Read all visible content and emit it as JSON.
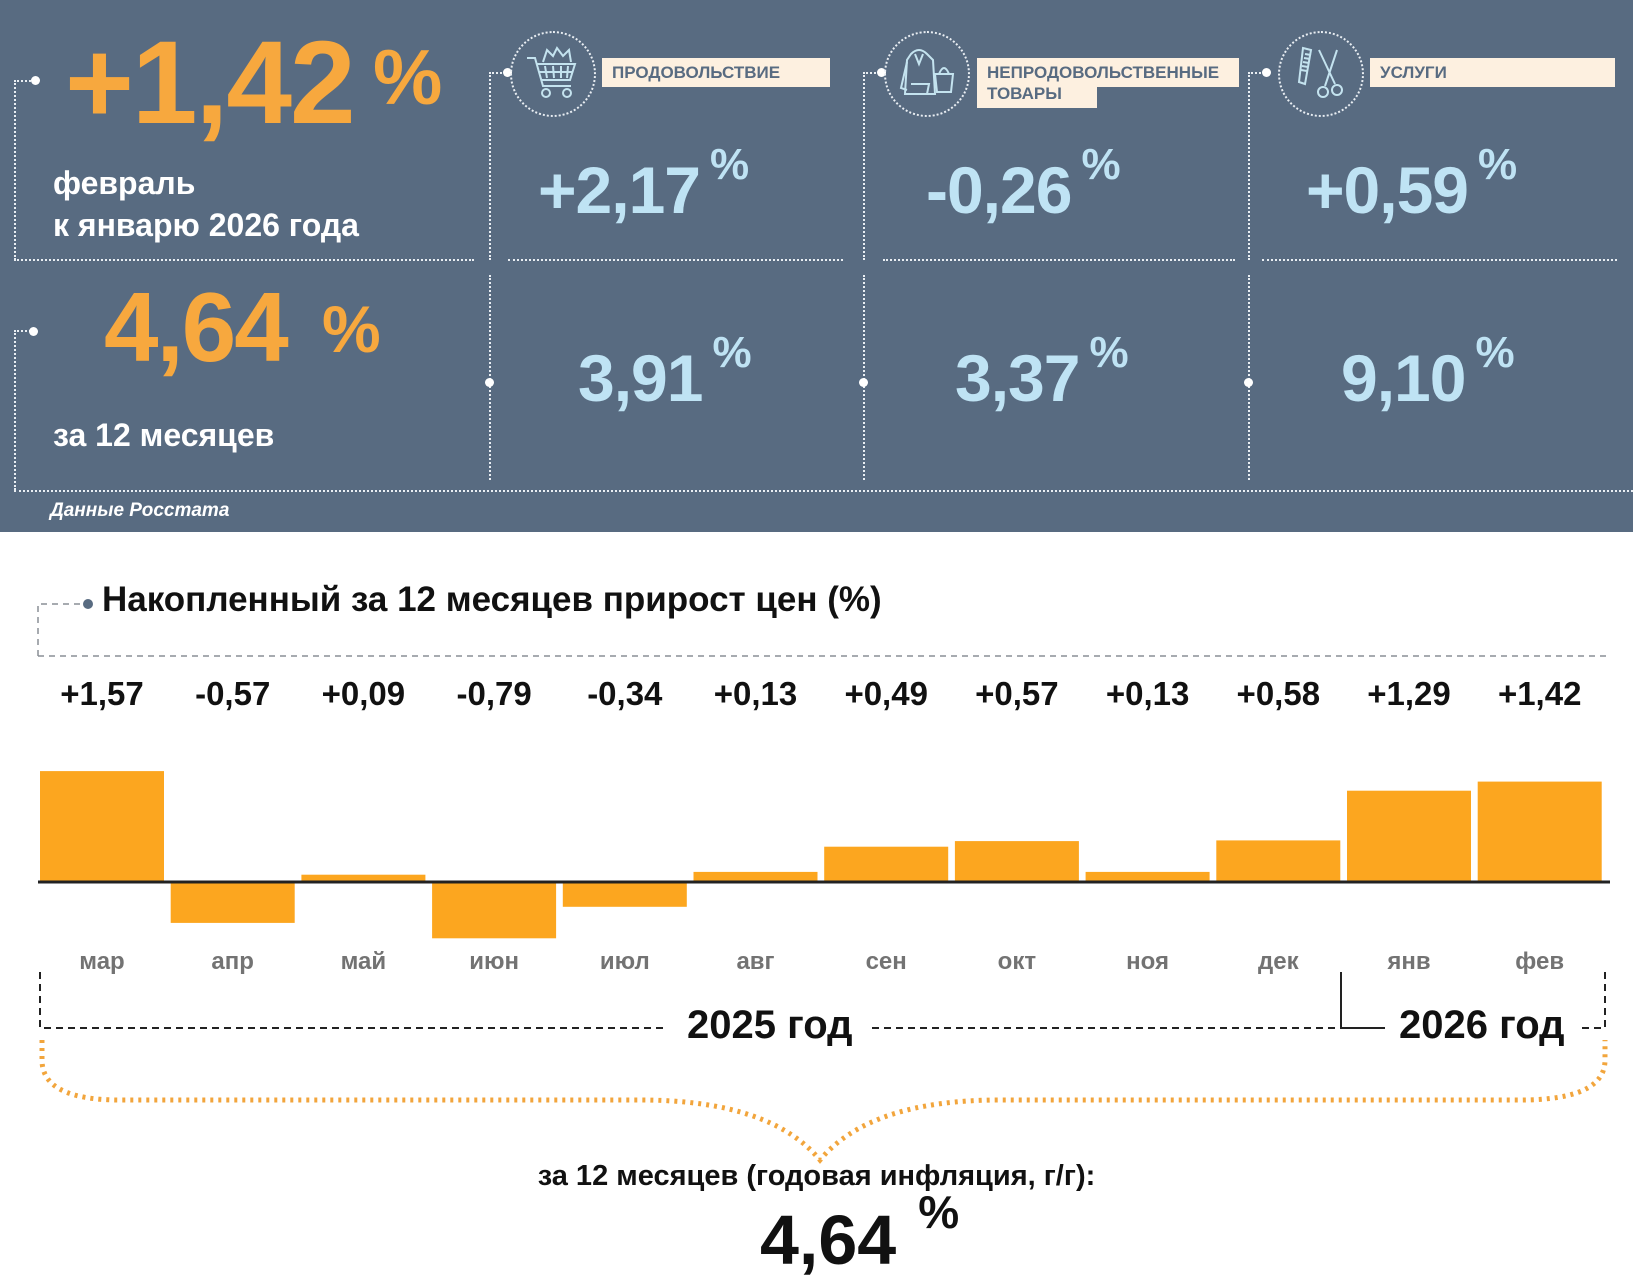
{
  "header": {
    "monthly": {
      "value": "+1,42",
      "pct_sign": "%",
      "caption_line1": "февраль",
      "caption_line2": "к январю 2026 года"
    },
    "annual": {
      "value": "4,64",
      "pct_sign": "%",
      "caption": "за 12 месяцев"
    },
    "categories": [
      {
        "icon": "shopping-cart-icon",
        "label_line1": "ПРОДОВОЛЬСТВИЕ",
        "label_line2": "",
        "monthly": "+2,17",
        "annual": "3,91",
        "pct_sign": "%"
      },
      {
        "icon": "clothing-bag-icon",
        "label_line1": "НЕПРОДОВОЛЬСТВЕННЫЕ",
        "label_line2": "ТОВАРЫ",
        "monthly": "-0,26",
        "annual": "3,37",
        "pct_sign": "%"
      },
      {
        "icon": "comb-scissors-icon",
        "label_line1": "УСЛУГИ",
        "label_line2": "",
        "monthly": "+0,59",
        "annual": "9,10",
        "pct_sign": "%"
      }
    ],
    "source": "Данные Росстата"
  },
  "colors": {
    "panel_bg": "#586b81",
    "accent_orange": "#f7a83e",
    "bar_orange": "#fca61f",
    "light_blue": "#bfe3f4",
    "label_bg": "#fdf0e0"
  },
  "chart_data": {
    "type": "bar",
    "title": "Накопленный за 12 месяцев прирост цен (%)",
    "categories": [
      "мар",
      "апр",
      "май",
      "июн",
      "июл",
      "авг",
      "сен",
      "окт",
      "ноя",
      "дек",
      "янв",
      "фев"
    ],
    "values": [
      1.57,
      -0.57,
      0.09,
      -0.79,
      -0.34,
      0.13,
      0.49,
      0.57,
      0.13,
      0.58,
      1.29,
      1.42
    ],
    "value_labels": [
      "+1,57",
      "-0,57",
      "+0,09",
      "-0,79",
      "-0,34",
      "+0,13",
      "+0,49",
      "+0,57",
      "+0,13",
      "+0,58",
      "+1,29",
      "+1,42"
    ],
    "year_groups": [
      {
        "label": "2025 год",
        "from": "мар",
        "to": "дек"
      },
      {
        "label": "2026 год",
        "from": "янв",
        "to": "фев"
      }
    ],
    "summary_caption": "за 12 месяцев (годовая инфляция, г/г):",
    "summary_value": "4,64",
    "summary_pct_sign": "%",
    "ylim": [
      -1.0,
      1.7
    ],
    "xlabel": "",
    "ylabel": "",
    "grid": false,
    "legend": "none"
  }
}
